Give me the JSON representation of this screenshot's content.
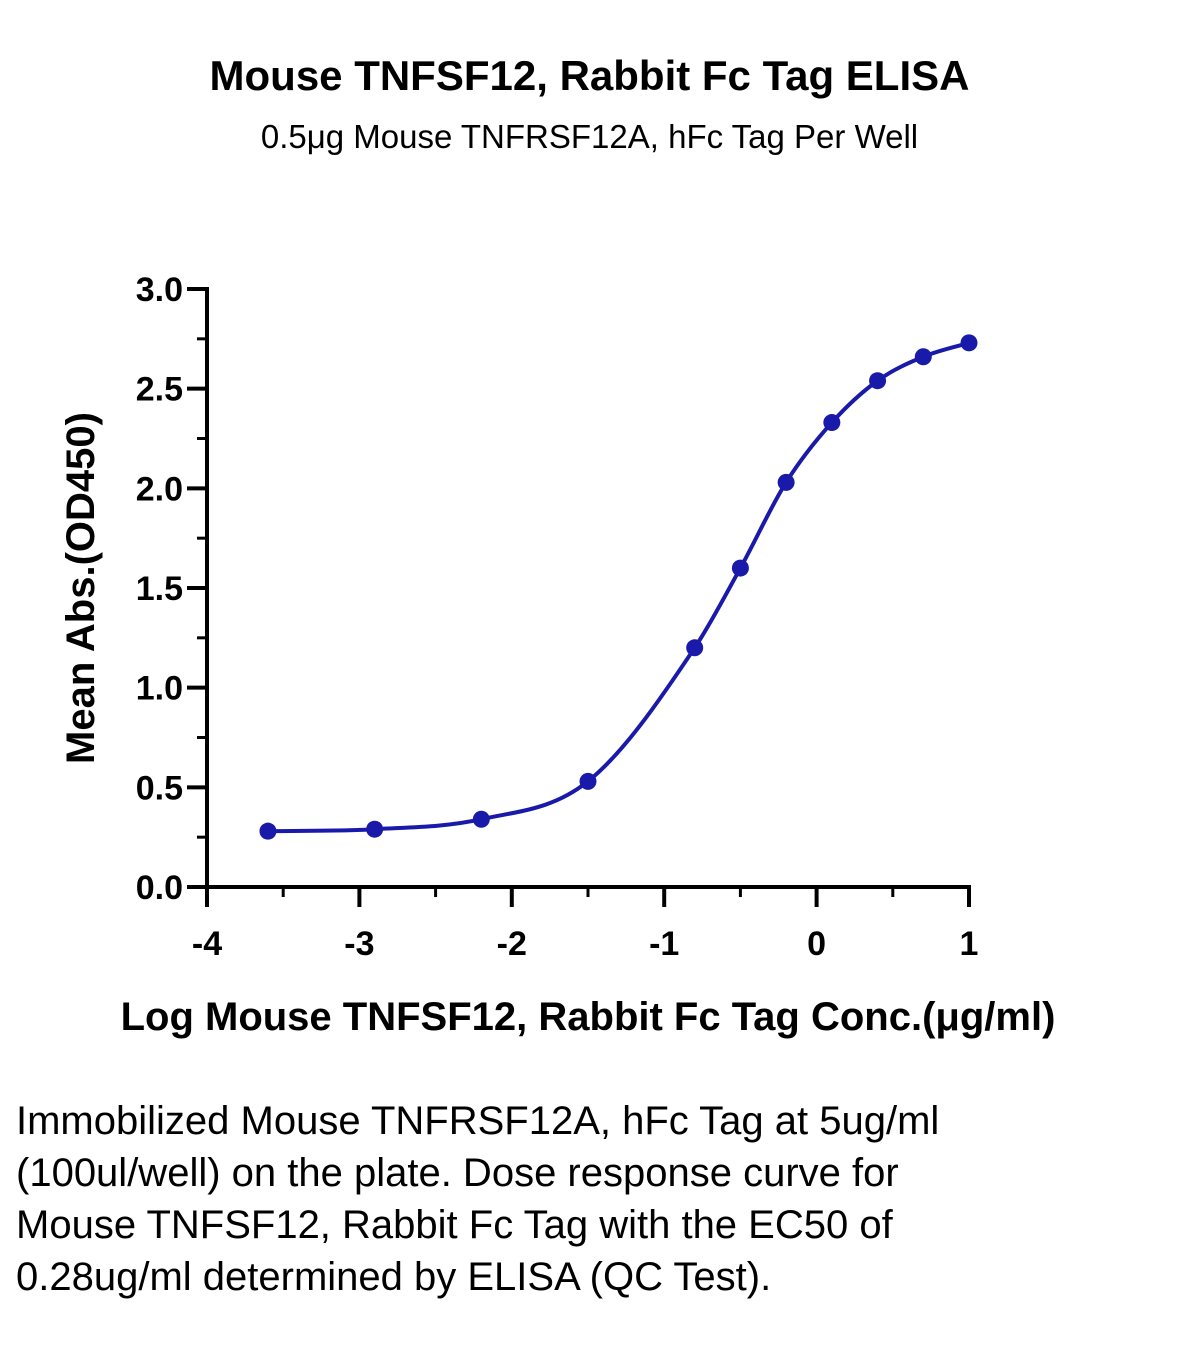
{
  "chart_data": {
    "type": "line",
    "title": "Mouse TNFSF12, Rabbit Fc Tag ELISA",
    "subtitle": "0.5μg Mouse TNFRSF12A, hFc Tag Per Well",
    "xlabel": "Log Mouse TNFSF12, Rabbit Fc Tag Conc.(μg/ml)",
    "ylabel": "Mean Abs.(OD450)",
    "xlim": [
      -4,
      1
    ],
    "ylim": [
      0,
      3
    ],
    "x_ticks": [
      "-4",
      "-3",
      "-2",
      "-1",
      "0",
      "1"
    ],
    "y_ticks": [
      "0.0",
      "0.5",
      "1.0",
      "1.5",
      "2.0",
      "2.5",
      "3.0"
    ],
    "grid": false,
    "series": [
      {
        "color": "#1a1aaa",
        "x": [
          -3.6,
          -2.9,
          -2.2,
          -1.5,
          -0.8,
          -0.5,
          -0.2,
          0.1,
          0.4,
          0.7,
          1.0
        ],
        "y": [
          0.28,
          0.29,
          0.34,
          0.53,
          1.2,
          1.6,
          2.03,
          2.33,
          2.54,
          2.66,
          2.73
        ]
      }
    ]
  },
  "caption": "Immobilized Mouse TNFRSF12A, hFc Tag at 5ug/ml (100ul/well) on the plate. Dose response curve for Mouse TNFSF12, Rabbit Fc Tag with the EC50 of 0.28ug/ml determined by ELISA (QC Test)."
}
